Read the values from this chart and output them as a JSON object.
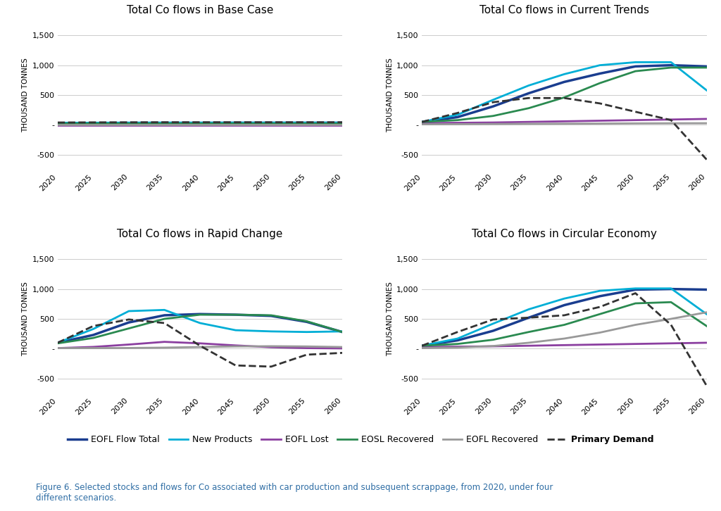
{
  "titles": [
    "Total Co flows in Base Case",
    "Total Co flows in Current Trends",
    "Total Co flows in Rapid Change",
    "Total Co flows in Circular Economy"
  ],
  "years": [
    2020,
    2025,
    2030,
    2035,
    2040,
    2045,
    2050,
    2055,
    2060
  ],
  "ylim": [
    -750,
    1750
  ],
  "yticks": [
    -500,
    0,
    500,
    1000,
    1500
  ],
  "ytick_labels": [
    "-500",
    "-",
    "500",
    "1,000",
    "1,500"
  ],
  "colors": {
    "eofl_flow_total": "#1a3d8f",
    "new_products": "#00aed6",
    "eofl_lost": "#8b3fa0",
    "eosl_recovered": "#2a8a50",
    "eofl_recovered": "#999999",
    "primary_demand": "#333333"
  },
  "scenarios": {
    "base_case": {
      "eofl_flow_total": [
        30,
        32,
        33,
        34,
        34,
        35,
        35,
        35,
        35
      ],
      "new_products": [
        35,
        36,
        37,
        37,
        37,
        37,
        37,
        37,
        37
      ],
      "eofl_lost": [
        -10,
        -10,
        -10,
        -10,
        -10,
        -10,
        -10,
        -10,
        -10
      ],
      "eosl_recovered": [
        30,
        30,
        30,
        30,
        30,
        30,
        30,
        30,
        30
      ],
      "eofl_recovered": [
        0,
        0,
        0,
        0,
        0,
        0,
        0,
        0,
        0
      ],
      "primary_demand": [
        40,
        42,
        43,
        44,
        44,
        44,
        44,
        44,
        44
      ]
    },
    "current_trends": {
      "eofl_flow_total": [
        50,
        130,
        310,
        530,
        720,
        860,
        980,
        1000,
        980
      ],
      "new_products": [
        50,
        170,
        420,
        660,
        850,
        1000,
        1050,
        1050,
        580
      ],
      "eofl_lost": [
        30,
        35,
        40,
        50,
        60,
        70,
        80,
        90,
        100
      ],
      "eosl_recovered": [
        50,
        80,
        150,
        280,
        460,
        700,
        900,
        960,
        960
      ],
      "eofl_recovered": [
        10,
        12,
        15,
        18,
        20,
        22,
        25,
        27,
        28
      ],
      "primary_demand": [
        50,
        200,
        380,
        450,
        450,
        360,
        220,
        80,
        -580
      ]
    },
    "rapid_change": {
      "eofl_flow_total": [
        100,
        230,
        440,
        560,
        580,
        570,
        550,
        450,
        280
      ],
      "new_products": [
        100,
        330,
        630,
        650,
        430,
        310,
        290,
        280,
        290
      ],
      "eofl_lost": [
        10,
        30,
        70,
        115,
        90,
        55,
        25,
        10,
        5
      ],
      "eosl_recovered": [
        90,
        180,
        340,
        500,
        570,
        570,
        560,
        460,
        280
      ],
      "eofl_recovered": [
        10,
        10,
        12,
        18,
        28,
        38,
        42,
        38,
        28
      ],
      "primary_demand": [
        100,
        380,
        490,
        430,
        50,
        -280,
        -300,
        -100,
        -70
      ]
    },
    "circular_economy": {
      "eofl_flow_total": [
        50,
        140,
        300,
        520,
        730,
        880,
        990,
        1000,
        990
      ],
      "new_products": [
        50,
        170,
        420,
        660,
        840,
        970,
        1010,
        1010,
        580
      ],
      "eofl_lost": [
        30,
        35,
        40,
        50,
        60,
        70,
        80,
        90,
        100
      ],
      "eosl_recovered": [
        50,
        80,
        150,
        280,
        400,
        580,
        760,
        780,
        380
      ],
      "eofl_recovered": [
        10,
        20,
        45,
        100,
        170,
        270,
        400,
        500,
        610
      ],
      "primary_demand": [
        50,
        280,
        490,
        520,
        560,
        700,
        930,
        400,
        -620
      ]
    }
  },
  "legend_entries": [
    {
      "label": "EOFL Flow Total",
      "color": "#1a3d8f",
      "linestyle": "-",
      "bold": false
    },
    {
      "label": "New Products",
      "color": "#00aed6",
      "linestyle": "-",
      "bold": false
    },
    {
      "label": "EOFL Lost",
      "color": "#8b3fa0",
      "linestyle": "-",
      "bold": false
    },
    {
      "label": "EOSL Recovered",
      "color": "#2a8a50",
      "linestyle": "-",
      "bold": false
    },
    {
      "label": "EOFL Recovered",
      "color": "#999999",
      "linestyle": "-",
      "bold": false
    },
    {
      "label": "Primary Demand",
      "color": "#333333",
      "linestyle": "--",
      "bold": true
    }
  ],
  "ylabel": "THOUSAND TONNES",
  "caption": "Figure 6. Selected stocks and flows for Co associated with car production and subsequent scrappage, from 2020, under four\ndifferent scenarios.",
  "background_color": "#ffffff",
  "grid_color": "#cccccc",
  "title_fontsize": 11,
  "axis_fontsize": 8,
  "legend_fontsize": 9,
  "caption_fontsize": 8.5,
  "caption_color": "#2e6da4"
}
